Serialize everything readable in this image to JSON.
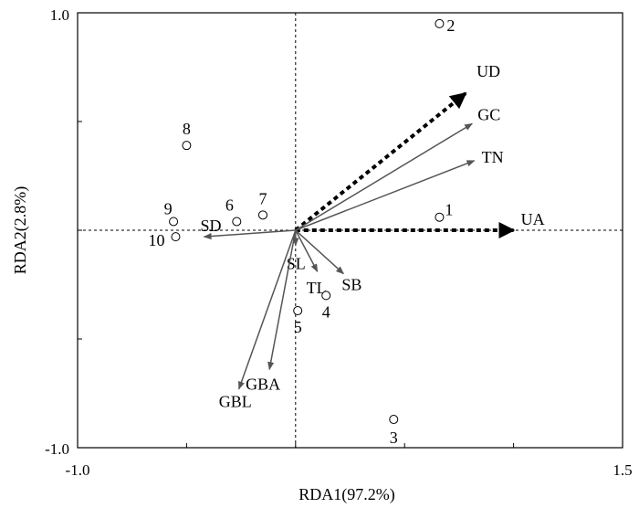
{
  "chart_data": {
    "type": "scatter",
    "subtype": "rda-biplot",
    "xlabel": "RDA1(97.2%)",
    "ylabel": "RDA2(2.8%)",
    "xlim": [
      -1.0,
      1.5
    ],
    "ylim": [
      -1.0,
      1.0
    ],
    "x_tick_labels": [
      "-1.0",
      "1.5"
    ],
    "y_tick_labels": [
      "1.0",
      "-1.0"
    ],
    "x_ticks": [
      -1.0,
      -0.5,
      0,
      0.5,
      1.0,
      1.5
    ],
    "y_ticks": [
      -1.0,
      -0.5,
      0,
      0.5,
      1.0
    ],
    "grid": false,
    "points": [
      {
        "label": "1",
        "x": 0.66,
        "y": 0.06
      },
      {
        "label": "2",
        "x": 0.66,
        "y": 0.95
      },
      {
        "label": "3",
        "x": 0.45,
        "y": -0.87
      },
      {
        "label": "4",
        "x": 0.14,
        "y": -0.3
      },
      {
        "label": "5",
        "x": 0.01,
        "y": -0.37
      },
      {
        "label": "6",
        "x": -0.27,
        "y": 0.04
      },
      {
        "label": "7",
        "x": -0.15,
        "y": 0.07
      },
      {
        "label": "8",
        "x": -0.5,
        "y": 0.39
      },
      {
        "label": "9",
        "x": -0.56,
        "y": 0.04
      },
      {
        "label": "10",
        "x": -0.55,
        "y": -0.03
      }
    ],
    "arrows": [
      {
        "label": "UD",
        "x": 0.78,
        "y": 0.63,
        "style": "dotted-bold"
      },
      {
        "label": "UA",
        "x": 1.0,
        "y": 0.0,
        "style": "dotted-bold"
      },
      {
        "label": "GC",
        "x": 0.81,
        "y": 0.49,
        "style": "solid"
      },
      {
        "label": "TN",
        "x": 0.82,
        "y": 0.32,
        "style": "solid"
      },
      {
        "label": "SD",
        "x": -0.42,
        "y": -0.03,
        "style": "solid"
      },
      {
        "label": "SL",
        "x": 0.0,
        "y": -0.07,
        "style": "solid"
      },
      {
        "label": "TL",
        "x": 0.1,
        "y": -0.19,
        "style": "solid"
      },
      {
        "label": "SB",
        "x": 0.22,
        "y": -0.2,
        "style": "solid"
      },
      {
        "label": "GBA",
        "x": -0.12,
        "y": -0.64,
        "style": "solid"
      },
      {
        "label": "GBL",
        "x": -0.26,
        "y": -0.73,
        "style": "solid"
      }
    ]
  }
}
